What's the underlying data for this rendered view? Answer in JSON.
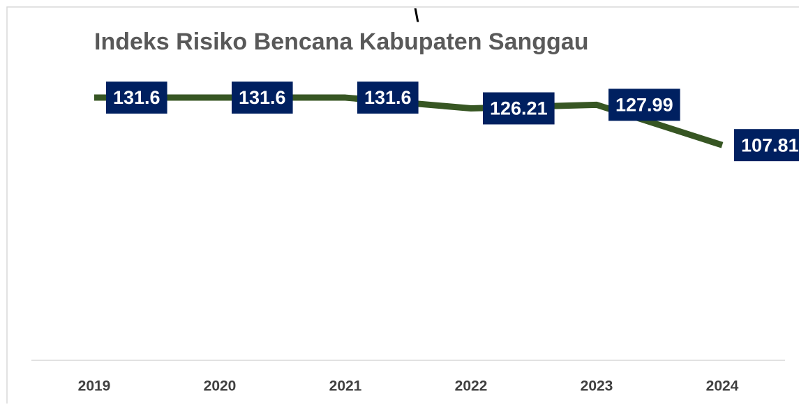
{
  "chart_data": {
    "type": "line",
    "title": "Indeks Risiko Bencana Kabupaten Sanggau",
    "annotation": "\\",
    "categories": [
      "2019",
      "2020",
      "2021",
      "2022",
      "2023",
      "2024"
    ],
    "values": [
      131.6,
      131.6,
      131.6,
      126.21,
      127.99,
      107.81
    ],
    "color": "#375623",
    "label_color": "#002060",
    "ylim": [
      0,
      140
    ]
  }
}
